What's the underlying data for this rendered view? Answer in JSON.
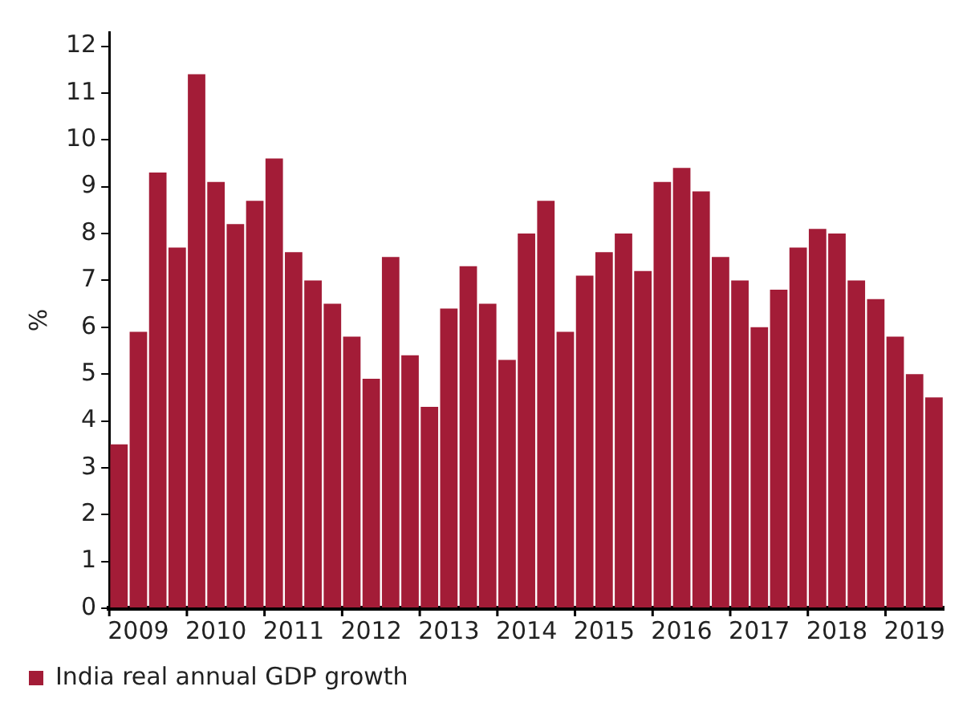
{
  "chart_data": {
    "type": "bar",
    "ylabel": "%",
    "categories": [
      null,
      "2009",
      null,
      null,
      null,
      "2010",
      null,
      null,
      null,
      "2011",
      null,
      null,
      null,
      "2012",
      null,
      null,
      null,
      "2013",
      null,
      null,
      null,
      "2014",
      null,
      null,
      null,
      "2015",
      null,
      null,
      null,
      "2016",
      null,
      null,
      null,
      "2017",
      null,
      null,
      null,
      "2018",
      null,
      null,
      null,
      "2019",
      null
    ],
    "series": [
      {
        "name": "India real annual GDP growth",
        "color": "#a31c37",
        "values": [
          3.5,
          5.9,
          9.3,
          7.7,
          11.4,
          9.1,
          8.2,
          8.7,
          9.6,
          7.6,
          7.0,
          6.5,
          5.8,
          4.9,
          7.5,
          5.4,
          4.3,
          6.4,
          7.3,
          6.5,
          5.3,
          8.0,
          8.7,
          5.9,
          7.1,
          7.6,
          8.0,
          7.2,
          9.1,
          9.4,
          8.9,
          7.5,
          7.0,
          6.0,
          6.8,
          7.7,
          8.1,
          8.0,
          7.0,
          6.6,
          5.8,
          5.0,
          4.5
        ]
      }
    ],
    "ylim": [
      0,
      12.3
    ],
    "yticks": [
      0,
      1,
      2,
      3,
      4,
      5,
      6,
      7,
      8,
      9,
      10,
      11,
      12
    ],
    "grid": false,
    "legend": "bottom left"
  }
}
